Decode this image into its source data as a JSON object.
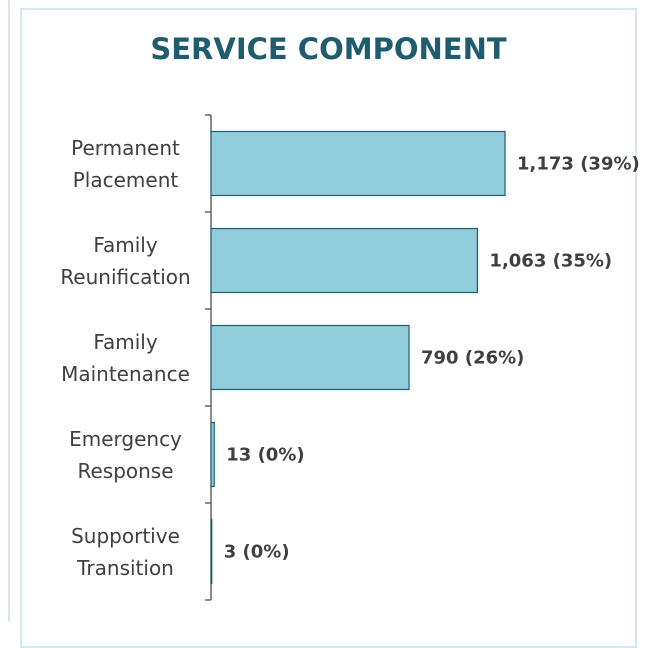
{
  "chart_data": {
    "type": "bar",
    "orientation": "horizontal",
    "title": "SERVICE COMPONENT",
    "categories": [
      "Permanent Placement",
      "Family Reunification",
      "Family Maintenance",
      "Emergency Response",
      "Supportive Transition"
    ],
    "values": [
      1173,
      1063,
      790,
      13,
      3
    ],
    "value_labels": [
      "1,173 (39%)",
      "1,063 (35%)",
      "790 (26%)",
      "13 (0%)",
      "3 (0%)"
    ],
    "color": "#92cddc"
  }
}
